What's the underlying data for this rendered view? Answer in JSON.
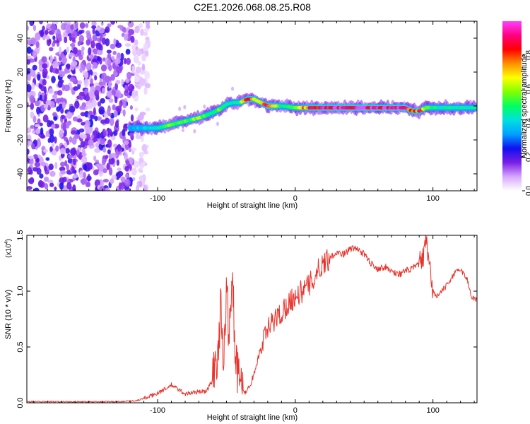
{
  "title": "C2E1.2026.068.08.25.R08",
  "chart_data": [
    {
      "type": "heatmap",
      "name": "spectrogram",
      "xlabel": "Height of straight line (km)",
      "ylabel": "Frequency (Hz)",
      "xlim": [
        -195,
        132
      ],
      "ylim": [
        -50,
        50
      ],
      "xticks": [
        -100,
        0,
        100
      ],
      "yticks": [
        -40,
        -20,
        0,
        20,
        40
      ],
      "xtick_labels": [
        "-100",
        "0",
        "100"
      ],
      "ytick_labels": [
        "-40",
        "-20",
        "0",
        "20",
        "40"
      ],
      "colorbar": {
        "label": "Normalized spectral amplitude",
        "range": [
          0,
          1
        ],
        "ticks": [
          0.0,
          0.2,
          0.4,
          0.6,
          0.8
        ],
        "tick_labels": [
          "0.0",
          "0.2",
          "0.4",
          "0.6",
          "0.8"
        ],
        "colormap": [
          "#ffffff",
          "#d6a8ff",
          "#7a1ee6",
          "#1010f0",
          "#00a0ff",
          "#00e0e0",
          "#00ff60",
          "#80ff00",
          "#ffff00",
          "#ff9000",
          "#ff0000",
          "#ff0080",
          "#ff40ff"
        ]
      },
      "noise_region_x": [
        -195,
        -107
      ],
      "ridge": {
        "x": [
          -120,
          -110,
          -100,
          -95,
          -90,
          -80,
          -70,
          -60,
          -55,
          -50,
          -45,
          -40,
          -35,
          -30,
          -25,
          -20,
          -10,
          0,
          10,
          20,
          40,
          60,
          70,
          80,
          85,
          90,
          95,
          100,
          110,
          120,
          132
        ],
        "freq": [
          -13,
          -13,
          -13,
          -12,
          -11,
          -9,
          -7,
          -4,
          -2,
          1,
          2,
          2,
          4,
          4,
          2,
          0,
          0,
          -1,
          -1,
          -1,
          -1,
          -1,
          -1,
          -1,
          -3,
          -3,
          -1,
          -1,
          -1,
          -1,
          -1
        ],
        "amp": [
          0.35,
          0.4,
          0.45,
          0.55,
          0.6,
          0.55,
          0.6,
          0.5,
          0.55,
          0.5,
          0.4,
          0.55,
          0.9,
          0.75,
          0.6,
          0.9,
          0.5,
          0.55,
          0.85,
          0.95,
          0.98,
          0.98,
          0.95,
          0.9,
          0.75,
          0.85,
          0.55,
          0.5,
          0.5,
          0.5,
          0.45
        ]
      }
    },
    {
      "type": "line",
      "name": "snr",
      "xlabel": "Height of straight line (km)",
      "ylabel": "SNR (10 * v/v)",
      "scale_label": "(x10",
      "scale_exp": "4",
      "scale_close": ")",
      "xlim": [
        -195,
        132
      ],
      "ylim": [
        0,
        1.5
      ],
      "xticks": [
        -100,
        0,
        100
      ],
      "yticks": [
        0.0,
        0.5,
        1.0,
        1.5
      ],
      "xtick_labels": [
        "-100",
        "0",
        "100"
      ],
      "ytick_labels": [
        "0.0",
        "0.5",
        "1.0",
        "1.5"
      ],
      "color": "#e8322b",
      "series": [
        {
          "name": "SNR",
          "x": [
            -195,
            -130,
            -115,
            -105,
            -95,
            -90,
            -85,
            -80,
            -75,
            -70,
            -65,
            -60,
            -56,
            -54,
            -52,
            -50,
            -48,
            -46,
            -44,
            -42,
            -40,
            -38,
            -35,
            -30,
            -25,
            -20,
            -15,
            -10,
            -5,
            0,
            5,
            10,
            15,
            20,
            25,
            30,
            35,
            40,
            45,
            50,
            55,
            60,
            65,
            70,
            75,
            80,
            85,
            90,
            93,
            95,
            97,
            100,
            103,
            105,
            110,
            115,
            120,
            125,
            128,
            132
          ],
          "values": [
            0.01,
            0.01,
            0.02,
            0.06,
            0.12,
            0.16,
            0.12,
            0.08,
            0.09,
            0.1,
            0.1,
            0.2,
            0.5,
            0.85,
            0.4,
            1.1,
            0.5,
            1.2,
            0.6,
            0.3,
            0.15,
            0.1,
            0.1,
            0.25,
            0.5,
            0.65,
            0.75,
            0.8,
            0.9,
            0.95,
            1.0,
            1.05,
            1.15,
            1.25,
            1.3,
            1.35,
            1.33,
            1.38,
            1.38,
            1.33,
            1.25,
            1.2,
            1.22,
            1.18,
            1.15,
            1.18,
            1.2,
            1.25,
            1.3,
            1.45,
            1.25,
            1.0,
            0.95,
            0.98,
            1.05,
            1.15,
            1.2,
            1.1,
            0.95,
            0.92
          ]
        }
      ]
    }
  ]
}
